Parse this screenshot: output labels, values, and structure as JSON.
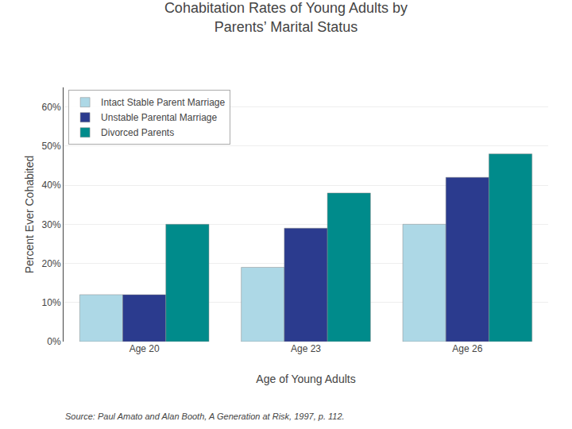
{
  "chart_data": {
    "type": "bar",
    "title": "Cohabitation Rates of Young Adults by\nParents’ Marital Status",
    "xlabel": "Age of Young Adults",
    "ylabel": "Percent Ever Cohabited",
    "categories": [
      "Age 20",
      "Age 23",
      "Age 26"
    ],
    "series": [
      {
        "name": "Intact Stable Parent Marriage",
        "color": "#ADD8E6",
        "values": [
          12,
          19,
          30
        ]
      },
      {
        "name": "Unstable Parental Marriage",
        "color": "#2B3B8E",
        "values": [
          12,
          29,
          42
        ]
      },
      {
        "name": "Divorced Parents",
        "color": "#008B8B",
        "values": [
          30,
          38,
          48
        ]
      }
    ],
    "ylim": [
      0,
      65
    ],
    "yticks": [
      {
        "value": 0,
        "label": "0%"
      },
      {
        "value": 10,
        "label": "10%"
      },
      {
        "value": 20,
        "label": "20%"
      },
      {
        "value": 30,
        "label": "30%"
      },
      {
        "value": 40,
        "label": "40%"
      },
      {
        "value": 50,
        "label": "50%"
      },
      {
        "value": 60,
        "label": "60%"
      }
    ],
    "grid": true,
    "legend": "upper left",
    "annotations": [
      "Source: Paul Amato and Alan Booth, A Generation at Risk, 1997, p. 112."
    ]
  }
}
